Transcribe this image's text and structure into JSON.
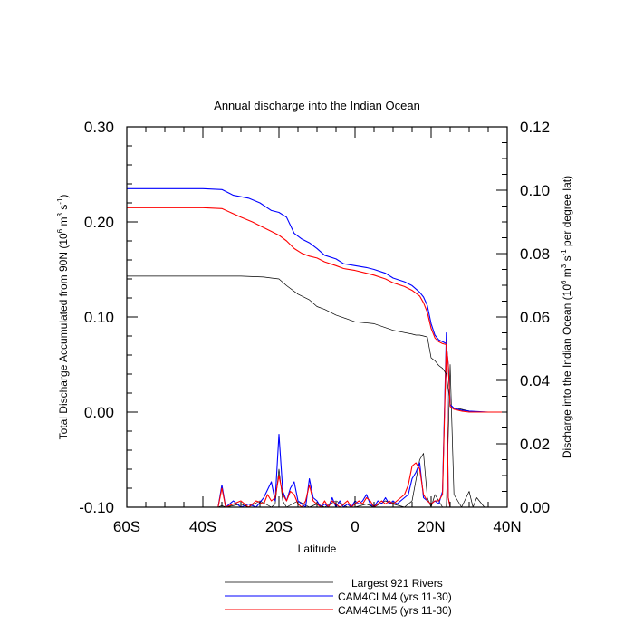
{
  "chart_data": {
    "type": "line",
    "title": "Annual discharge into the Indian Ocean",
    "xlabel": "Latitude",
    "ylabel_left": "Total Discharge Accumulated from 90N (10^6 m^3 s^-1)",
    "ylabel_right": "Discharge into the Indian Ocean (10^6 m^3 s^-1 per degree lat)",
    "xlim": [
      -60,
      40
    ],
    "ylim_left": [
      -0.1,
      0.3
    ],
    "ylim_right": [
      0.0,
      0.12
    ],
    "x_ticks": [
      {
        "value": -60,
        "label": "60S"
      },
      {
        "value": -40,
        "label": "40S"
      },
      {
        "value": -20,
        "label": "20S"
      },
      {
        "value": 0,
        "label": "0"
      },
      {
        "value": 20,
        "label": "20N"
      },
      {
        "value": 40,
        "label": "40N"
      }
    ],
    "y_left_ticks": [
      {
        "value": -0.1,
        "label": "-0.10"
      },
      {
        "value": 0.0,
        "label": "0.00"
      },
      {
        "value": 0.1,
        "label": "0.10"
      },
      {
        "value": 0.2,
        "label": "0.20"
      },
      {
        "value": 0.3,
        "label": "0.30"
      }
    ],
    "y_right_ticks": [
      {
        "value": 0.0,
        "label": "0.00"
      },
      {
        "value": 0.02,
        "label": "0.02"
      },
      {
        "value": 0.04,
        "label": "0.04"
      },
      {
        "value": 0.06,
        "label": "0.06"
      },
      {
        "value": 0.08,
        "label": "0.08"
      },
      {
        "value": 0.1,
        "label": "0.10"
      },
      {
        "value": 0.12,
        "label": "0.12"
      }
    ],
    "accumulated_series": [
      {
        "name": "Largest 921 Rivers",
        "color": "#000000",
        "x": [
          -60,
          -40,
          -30,
          -24,
          -22,
          -20,
          -18,
          -15,
          -12,
          -10,
          -8,
          -5,
          0,
          5,
          10,
          15,
          16,
          17,
          18,
          19,
          20,
          21,
          22,
          23,
          24,
          25,
          26,
          27,
          28,
          30,
          32,
          35,
          40
        ],
        "y": [
          0.143,
          0.143,
          0.143,
          0.142,
          0.141,
          0.14,
          0.133,
          0.124,
          0.118,
          0.111,
          0.108,
          0.102,
          0.095,
          0.093,
          0.086,
          0.082,
          0.081,
          0.081,
          0.08,
          0.079,
          0.057,
          0.054,
          0.049,
          0.046,
          0.04,
          0.008,
          0.004,
          0.004,
          0.003,
          0.001,
          0.0,
          0.0,
          0.0
        ]
      },
      {
        "name": "CAM4CLM4 (yrs 11-30)",
        "color": "#0000ff",
        "x": [
          -60,
          -40,
          -35,
          -32,
          -28,
          -25,
          -22,
          -20,
          -18,
          -16,
          -14,
          -12,
          -10,
          -8,
          -5,
          -3,
          0,
          3,
          5,
          8,
          10,
          13,
          15,
          17,
          18,
          19,
          20,
          21,
          22,
          23,
          24,
          24.5,
          25,
          26,
          27,
          28,
          30,
          35,
          40
        ],
        "y": [
          0.235,
          0.235,
          0.234,
          0.228,
          0.225,
          0.22,
          0.212,
          0.21,
          0.205,
          0.188,
          0.182,
          0.178,
          0.172,
          0.165,
          0.161,
          0.156,
          0.154,
          0.152,
          0.15,
          0.146,
          0.141,
          0.137,
          0.133,
          0.126,
          0.121,
          0.112,
          0.093,
          0.081,
          0.076,
          0.074,
          0.072,
          0.05,
          0.008,
          0.004,
          0.003,
          0.002,
          0.001,
          0.0,
          0.0
        ]
      },
      {
        "name": "CAM4CLM5 (yrs 11-30)",
        "color": "#ff0000",
        "x": [
          -60,
          -40,
          -35,
          -30,
          -27,
          -25,
          -22,
          -20,
          -18,
          -16,
          -14,
          -12,
          -10,
          -8,
          -5,
          -3,
          0,
          3,
          5,
          8,
          10,
          13,
          15,
          17,
          18,
          19,
          20,
          21,
          22,
          23,
          24,
          24.5,
          25,
          26,
          27,
          28,
          30,
          35,
          40
        ],
        "y": [
          0.215,
          0.215,
          0.214,
          0.205,
          0.2,
          0.196,
          0.19,
          0.186,
          0.18,
          0.172,
          0.167,
          0.164,
          0.162,
          0.158,
          0.154,
          0.151,
          0.149,
          0.146,
          0.144,
          0.14,
          0.136,
          0.132,
          0.128,
          0.122,
          0.115,
          0.105,
          0.088,
          0.078,
          0.074,
          0.072,
          0.071,
          0.05,
          0.006,
          0.003,
          0.002,
          0.001,
          0.0,
          0.0,
          0.0
        ]
      }
    ],
    "per_latitude_series": [
      {
        "name": "Largest 921 Rivers",
        "color": "#000000",
        "x": [
          -60,
          -36,
          -35,
          -34,
          -30,
          -28,
          -25,
          -22,
          -21,
          -20,
          -19,
          -18,
          -15,
          -12,
          -10,
          -8,
          -5,
          -2,
          0,
          3,
          5,
          8,
          10,
          13,
          15,
          17,
          18,
          19,
          20,
          21,
          22,
          23,
          24,
          25,
          26,
          28,
          30,
          31,
          32,
          34,
          40
        ],
        "y": [
          0.0,
          0.0,
          0.0005,
          0.0,
          0.001,
          0.0,
          0.002,
          0.0,
          0.001,
          0.012,
          0.002,
          0.0,
          0.002,
          0.0,
          0.001,
          0.0,
          0.002,
          0.0,
          0.0,
          0.001,
          0.0,
          0.002,
          0.001,
          0.0,
          0.002,
          0.015,
          0.017,
          0.003,
          0.0,
          0.004,
          0.002,
          0.0,
          0.0,
          0.045,
          0.004,
          0.0,
          0.005,
          0.0,
          0.003,
          0.0,
          0.0
        ]
      },
      {
        "name": "CAM4CLM4 (yrs 11-30)",
        "color": "#0000ff",
        "x": [
          -60,
          -36,
          -35,
          -34,
          -32,
          -30,
          -28,
          -26,
          -24,
          -22,
          -21,
          -20,
          -19,
          -18,
          -17,
          -16,
          -15,
          -14,
          -13,
          -12,
          -11,
          -10,
          -9,
          -8,
          -7,
          -6,
          -5,
          -4,
          -3,
          -2,
          -1,
          0,
          1,
          2,
          3,
          4,
          5,
          6,
          7,
          8,
          9,
          10,
          11,
          12,
          13,
          14,
          15,
          16,
          17,
          18,
          19,
          20,
          21,
          22,
          23,
          24,
          24.5,
          25,
          26,
          27,
          28,
          29,
          30,
          40
        ],
        "y": [
          0.0,
          0.0,
          0.007,
          0.0,
          0.002,
          0.0,
          0.001,
          0.0,
          0.003,
          0.008,
          0.002,
          0.023,
          0.005,
          0.002,
          0.006,
          0.008,
          0.002,
          0.001,
          0.0,
          0.009,
          0.003,
          0.002,
          0.0,
          0.001,
          0.0,
          0.003,
          0.0,
          0.002,
          0.0,
          0.001,
          0.0,
          0.002,
          0.001,
          0.002,
          0.004,
          0.001,
          0.0,
          0.002,
          0.001,
          0.003,
          0.001,
          0.002,
          0.001,
          0.002,
          0.003,
          0.004,
          0.009,
          0.011,
          0.014,
          0.003,
          0.002,
          0.001,
          0.002,
          0.001,
          0.005,
          0.055,
          0.003,
          0.0,
          0.0,
          0.0,
          0.0,
          0.0,
          0.0,
          0.0
        ]
      },
      {
        "name": "CAM4CLM5 (yrs 11-30)",
        "color": "#ff0000",
        "x": [
          -60,
          -36,
          -35,
          -34,
          -32,
          -30,
          -28,
          -26,
          -24,
          -23,
          -22,
          -21,
          -20,
          -19,
          -18,
          -17,
          -16,
          -15,
          -14,
          -13,
          -12,
          -11,
          -10,
          -9,
          -8,
          -7,
          -6,
          -5,
          -4,
          -3,
          -2,
          -1,
          0,
          1,
          2,
          3,
          4,
          5,
          6,
          7,
          8,
          9,
          10,
          11,
          12,
          13,
          14,
          15,
          16,
          17,
          18,
          19,
          20,
          21,
          22,
          23,
          24,
          24.5,
          25,
          26,
          27,
          28,
          29,
          30,
          40
        ],
        "y": [
          0.0,
          0.0,
          0.006,
          0.0,
          0.001,
          0.002,
          0.0,
          0.002,
          0.001,
          0.004,
          0.002,
          0.003,
          0.01,
          0.004,
          0.002,
          0.005,
          0.004,
          0.001,
          0.0,
          0.002,
          0.007,
          0.002,
          0.001,
          0.0,
          0.002,
          0.0,
          0.002,
          0.001,
          0.0,
          0.001,
          0.002,
          0.0,
          0.001,
          0.002,
          0.001,
          0.003,
          0.002,
          0.0,
          0.001,
          0.002,
          0.001,
          0.002,
          0.001,
          0.002,
          0.003,
          0.004,
          0.007,
          0.013,
          0.014,
          0.012,
          0.004,
          0.002,
          0.001,
          0.002,
          0.002,
          0.004,
          0.052,
          0.003,
          0.0,
          0.0,
          0.0,
          0.0,
          0.0,
          0.0,
          0.0
        ]
      }
    ],
    "legend": [
      {
        "label": "Largest 921 Rivers",
        "color": "#000000"
      },
      {
        "label": "CAM4CLM4 (yrs 11-30)",
        "color": "#0000ff"
      },
      {
        "label": "CAM4CLM5 (yrs 11-30)",
        "color": "#ff0000"
      }
    ],
    "legend_position": "bottom-center"
  }
}
